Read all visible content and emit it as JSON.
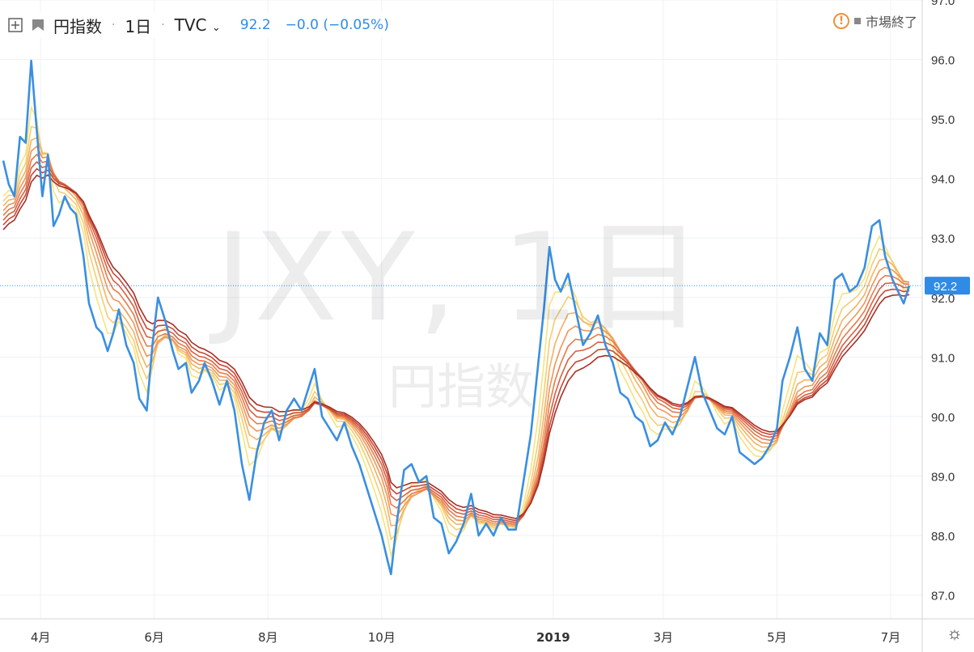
{
  "header": {
    "symbol_name": "円指数",
    "interval": "1日",
    "source": "TVC",
    "price": "92.2",
    "change": "−0.0 (−0.05%)",
    "market_status": "市場終了"
  },
  "watermark": {
    "main": "JXY, 1日",
    "sub": "円指数"
  },
  "price_label": "92.2",
  "colors": {
    "price_line": "#3a8fe0",
    "ribbon": [
      "#f7e37e",
      "#f6cd71",
      "#f3b264",
      "#ef9658",
      "#e57b4c",
      "#d86041",
      "#c64735",
      "#a82f25"
    ],
    "grid": "#eef1f6",
    "axis_text": "#333333",
    "price_badge": "#2f8be6"
  },
  "chart_data": {
    "type": "line",
    "title": "",
    "ylim": [
      86.6,
      97.0
    ],
    "y_ticks": [
      "87.0",
      "88.0",
      "89.0",
      "90.0",
      "91.0",
      "92.0",
      "93.0",
      "94.0",
      "95.0",
      "96.0",
      "97.0"
    ],
    "x_ticks": [
      "4月",
      "6月",
      "8月",
      "10月",
      "2019",
      "3月",
      "5月",
      "7月"
    ],
    "x_tick_dates": [
      "2018-04-01",
      "2018-06-01",
      "2018-08-01",
      "2018-10-01",
      "2019-01-01",
      "2019-03-01",
      "2019-05-01",
      "2019-07-01"
    ],
    "grid": true,
    "last_price": 92.2,
    "series": [
      {
        "points": [
          [
            "2018-03-12",
            94.3
          ],
          [
            "2018-03-15",
            93.9
          ],
          [
            "2018-03-18",
            93.7
          ],
          [
            "2018-03-21",
            94.7
          ],
          [
            "2018-03-24",
            94.6
          ],
          [
            "2018-03-27",
            95.98
          ],
          [
            "2018-03-30",
            94.8
          ],
          [
            "2018-04-02",
            93.7
          ],
          [
            "2018-04-05",
            94.4
          ],
          [
            "2018-04-08",
            93.2
          ],
          [
            "2018-04-11",
            93.4
          ],
          [
            "2018-04-14",
            93.7
          ],
          [
            "2018-04-17",
            93.5
          ],
          [
            "2018-04-20",
            93.4
          ],
          [
            "2018-04-24",
            92.7
          ],
          [
            "2018-04-27",
            91.9
          ],
          [
            "2018-05-01",
            91.5
          ],
          [
            "2018-05-04",
            91.4
          ],
          [
            "2018-05-07",
            91.1
          ],
          [
            "2018-05-10",
            91.4
          ],
          [
            "2018-05-13",
            91.8
          ],
          [
            "2018-05-17",
            91.2
          ],
          [
            "2018-05-21",
            90.9
          ],
          [
            "2018-05-24",
            90.3
          ],
          [
            "2018-05-28",
            90.1
          ],
          [
            "2018-05-31",
            91.2
          ],
          [
            "2018-06-03",
            92.0
          ],
          [
            "2018-06-07",
            91.6
          ],
          [
            "2018-06-11",
            91.1
          ],
          [
            "2018-06-14",
            90.8
          ],
          [
            "2018-06-18",
            90.9
          ],
          [
            "2018-06-21",
            90.4
          ],
          [
            "2018-06-25",
            90.6
          ],
          [
            "2018-06-28",
            90.9
          ],
          [
            "2018-07-02",
            90.6
          ],
          [
            "2018-07-06",
            90.2
          ],
          [
            "2018-07-10",
            90.6
          ],
          [
            "2018-07-14",
            90.1
          ],
          [
            "2018-07-18",
            89.2
          ],
          [
            "2018-07-22",
            88.6
          ],
          [
            "2018-07-26",
            89.4
          ],
          [
            "2018-07-30",
            89.9
          ],
          [
            "2018-08-03",
            90.1
          ],
          [
            "2018-08-07",
            89.6
          ],
          [
            "2018-08-11",
            90.1
          ],
          [
            "2018-08-15",
            90.3
          ],
          [
            "2018-08-19",
            90.1
          ],
          [
            "2018-08-23",
            90.5
          ],
          [
            "2018-08-26",
            90.8
          ],
          [
            "2018-08-30",
            90.0
          ],
          [
            "2018-09-03",
            89.8
          ],
          [
            "2018-09-07",
            89.6
          ],
          [
            "2018-09-11",
            89.9
          ],
          [
            "2018-09-15",
            89.5
          ],
          [
            "2018-09-19",
            89.2
          ],
          [
            "2018-09-23",
            88.8
          ],
          [
            "2018-09-27",
            88.4
          ],
          [
            "2018-10-01",
            88.0
          ],
          [
            "2018-10-04",
            87.6
          ],
          [
            "2018-10-06",
            87.35
          ],
          [
            "2018-10-09",
            88.2
          ],
          [
            "2018-10-13",
            89.1
          ],
          [
            "2018-10-17",
            89.2
          ],
          [
            "2018-10-21",
            88.9
          ],
          [
            "2018-10-25",
            89.0
          ],
          [
            "2018-10-29",
            88.3
          ],
          [
            "2018-11-02",
            88.2
          ],
          [
            "2018-11-06",
            87.7
          ],
          [
            "2018-11-10",
            87.9
          ],
          [
            "2018-11-14",
            88.2
          ],
          [
            "2018-11-18",
            88.7
          ],
          [
            "2018-11-22",
            88.0
          ],
          [
            "2018-11-26",
            88.2
          ],
          [
            "2018-11-30",
            88.0
          ],
          [
            "2018-12-04",
            88.3
          ],
          [
            "2018-12-08",
            88.1
          ],
          [
            "2018-12-12",
            88.1
          ],
          [
            "2018-12-16",
            88.9
          ],
          [
            "2018-12-20",
            89.7
          ],
          [
            "2018-12-24",
            90.9
          ],
          [
            "2018-12-27",
            91.8
          ],
          [
            "2018-12-30",
            92.85
          ],
          [
            "2019-01-02",
            92.3
          ],
          [
            "2019-01-05",
            92.1
          ],
          [
            "2019-01-09",
            92.4
          ],
          [
            "2019-01-13",
            91.8
          ],
          [
            "2019-01-17",
            91.2
          ],
          [
            "2019-01-21",
            91.4
          ],
          [
            "2019-01-25",
            91.7
          ],
          [
            "2019-01-29",
            91.2
          ],
          [
            "2019-02-02",
            90.9
          ],
          [
            "2019-02-06",
            90.4
          ],
          [
            "2019-02-10",
            90.3
          ],
          [
            "2019-02-14",
            90.0
          ],
          [
            "2019-02-18",
            89.9
          ],
          [
            "2019-02-22",
            89.5
          ],
          [
            "2019-02-26",
            89.6
          ],
          [
            "2019-03-02",
            89.9
          ],
          [
            "2019-03-06",
            89.7
          ],
          [
            "2019-03-10",
            90.0
          ],
          [
            "2019-03-14",
            90.5
          ],
          [
            "2019-03-18",
            91.0
          ],
          [
            "2019-03-22",
            90.4
          ],
          [
            "2019-03-26",
            90.1
          ],
          [
            "2019-03-30",
            89.8
          ],
          [
            "2019-04-03",
            89.7
          ],
          [
            "2019-04-07",
            90.0
          ],
          [
            "2019-04-11",
            89.4
          ],
          [
            "2019-04-15",
            89.3
          ],
          [
            "2019-04-19",
            89.2
          ],
          [
            "2019-04-23",
            89.3
          ],
          [
            "2019-04-27",
            89.5
          ],
          [
            "2019-05-01",
            89.8
          ],
          [
            "2019-05-04",
            90.6
          ],
          [
            "2019-05-08",
            91.0
          ],
          [
            "2019-05-12",
            91.5
          ],
          [
            "2019-05-16",
            90.8
          ],
          [
            "2019-05-20",
            90.6
          ],
          [
            "2019-05-24",
            91.4
          ],
          [
            "2019-05-28",
            91.2
          ],
          [
            "2019-06-01",
            92.3
          ],
          [
            "2019-06-05",
            92.4
          ],
          [
            "2019-06-09",
            92.1
          ],
          [
            "2019-06-13",
            92.2
          ],
          [
            "2019-06-17",
            92.5
          ],
          [
            "2019-06-21",
            93.2
          ],
          [
            "2019-06-25",
            93.3
          ],
          [
            "2019-06-28",
            92.7
          ],
          [
            "2019-07-02",
            92.3
          ],
          [
            "2019-07-05",
            92.1
          ],
          [
            "2019-07-08",
            91.9
          ],
          [
            "2019-07-11",
            92.2
          ]
        ]
      }
    ]
  }
}
